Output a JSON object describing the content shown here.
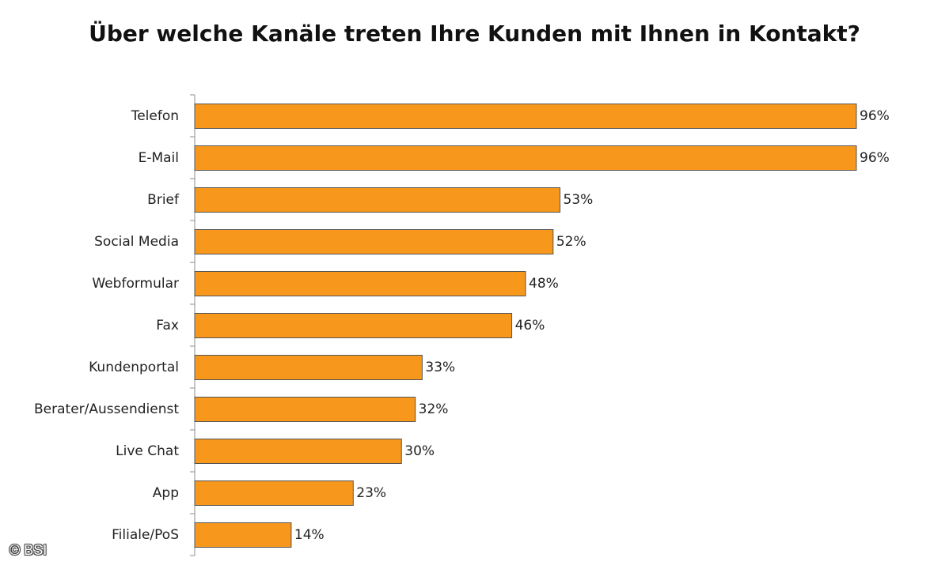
{
  "chart_data": {
    "type": "bar",
    "orientation": "horizontal",
    "title": "Über welche Kanäle treten Ihre Kunden mit Ihnen in Kontakt?",
    "xlabel": "",
    "ylabel": "",
    "categories": [
      "Telefon",
      "E-Mail",
      "Brief",
      "Social Media",
      "Webformular",
      "Fax",
      "Kundenportal",
      "Berater/Aussendienst",
      "Live Chat",
      "App",
      "Filiale/PoS"
    ],
    "values": [
      96,
      96,
      53,
      52,
      48,
      46,
      33,
      32,
      30,
      23,
      14
    ],
    "value_labels": [
      "96%",
      "96%",
      "53%",
      "52%",
      "48%",
      "46%",
      "33%",
      "32%",
      "30%",
      "23%",
      "14%"
    ],
    "xlim": [
      0,
      100
    ],
    "grid": false,
    "legend": "none",
    "bar_color": "#F7981D",
    "bar_edge_color": "#555555"
  },
  "copyright": "© BSI"
}
